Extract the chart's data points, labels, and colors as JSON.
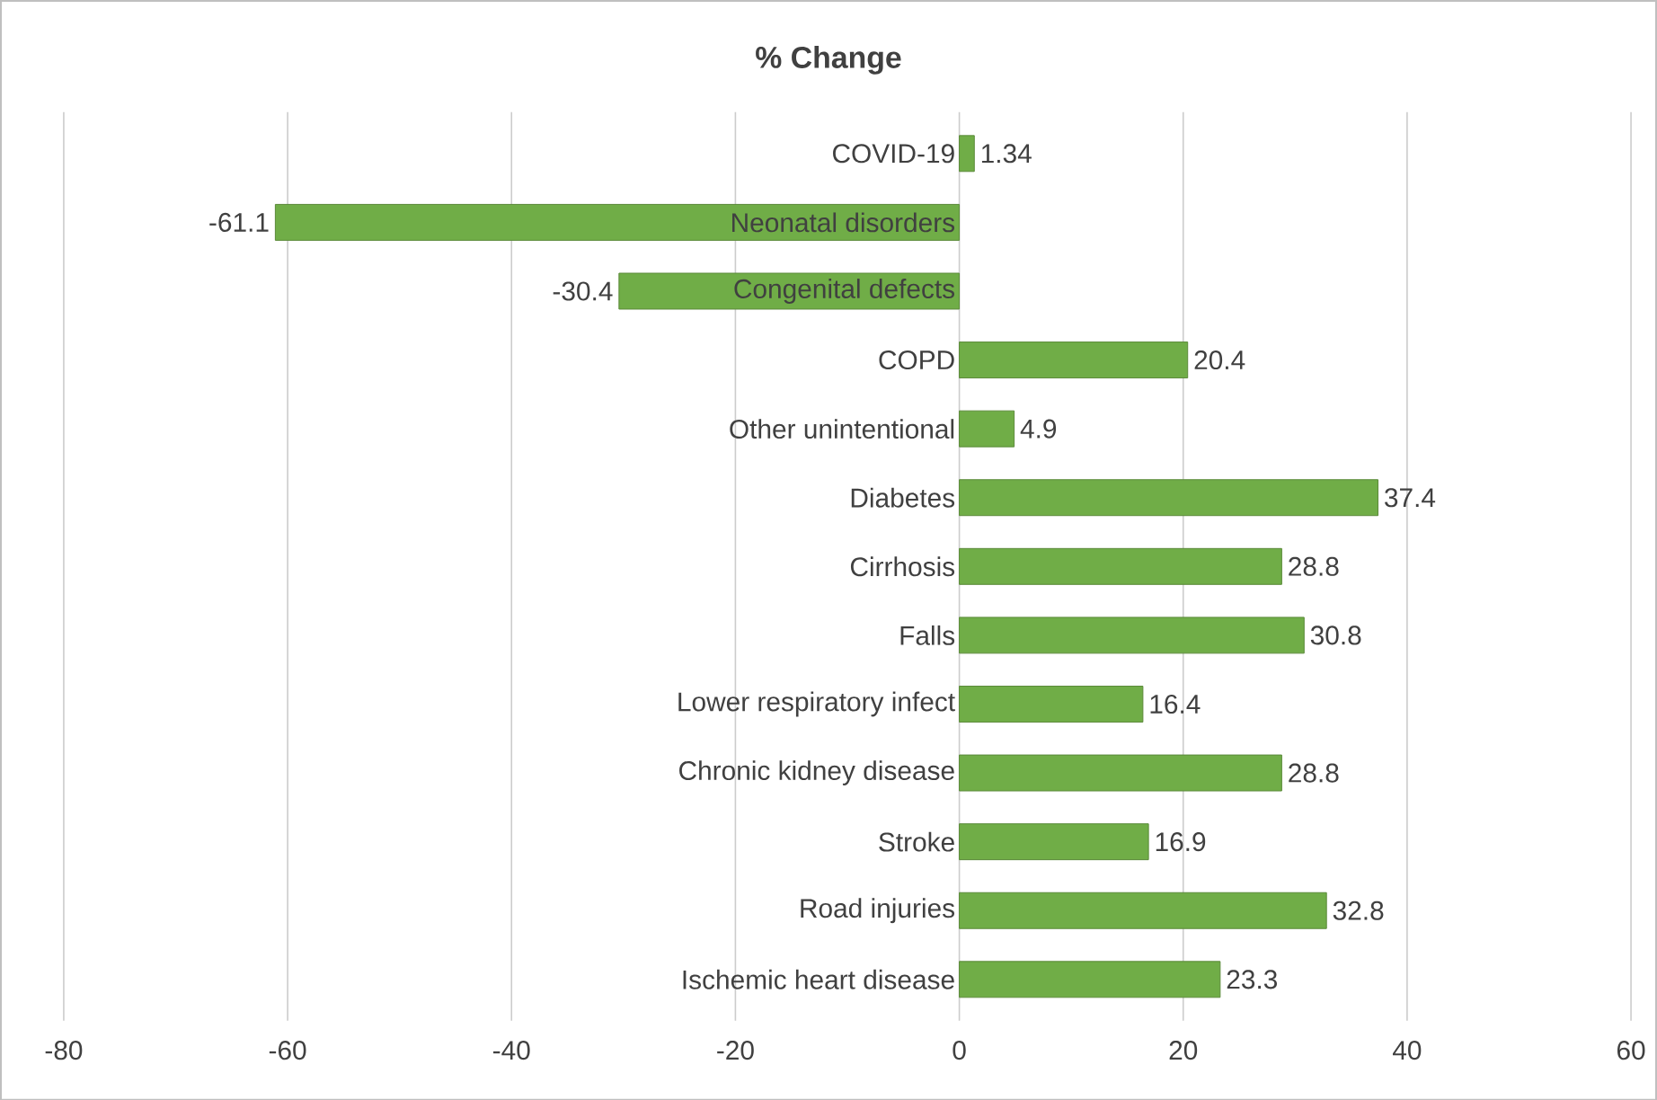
{
  "chart_data": {
    "type": "bar",
    "orientation": "horizontal",
    "title": "% Change",
    "categories": [
      "COVID-19",
      "Neonatal disorders",
      "Congenital defects",
      "COPD",
      "Other unintentional",
      "Diabetes",
      "Cirrhosis",
      "Falls",
      "Lower respiratory infect",
      "Chronic kidney disease",
      "Stroke",
      "Road injuries",
      "Ischemic heart disease"
    ],
    "values": [
      1.34,
      -61.1,
      -30.4,
      20.4,
      4.9,
      37.4,
      28.8,
      30.8,
      16.4,
      28.8,
      16.9,
      32.8,
      23.3
    ],
    "color": "#70ad47",
    "xlim": [
      -80,
      60
    ],
    "xticks": [
      -80,
      -60,
      -40,
      -20,
      0,
      20,
      40,
      60
    ],
    "grid": "x",
    "data_labels": true
  }
}
